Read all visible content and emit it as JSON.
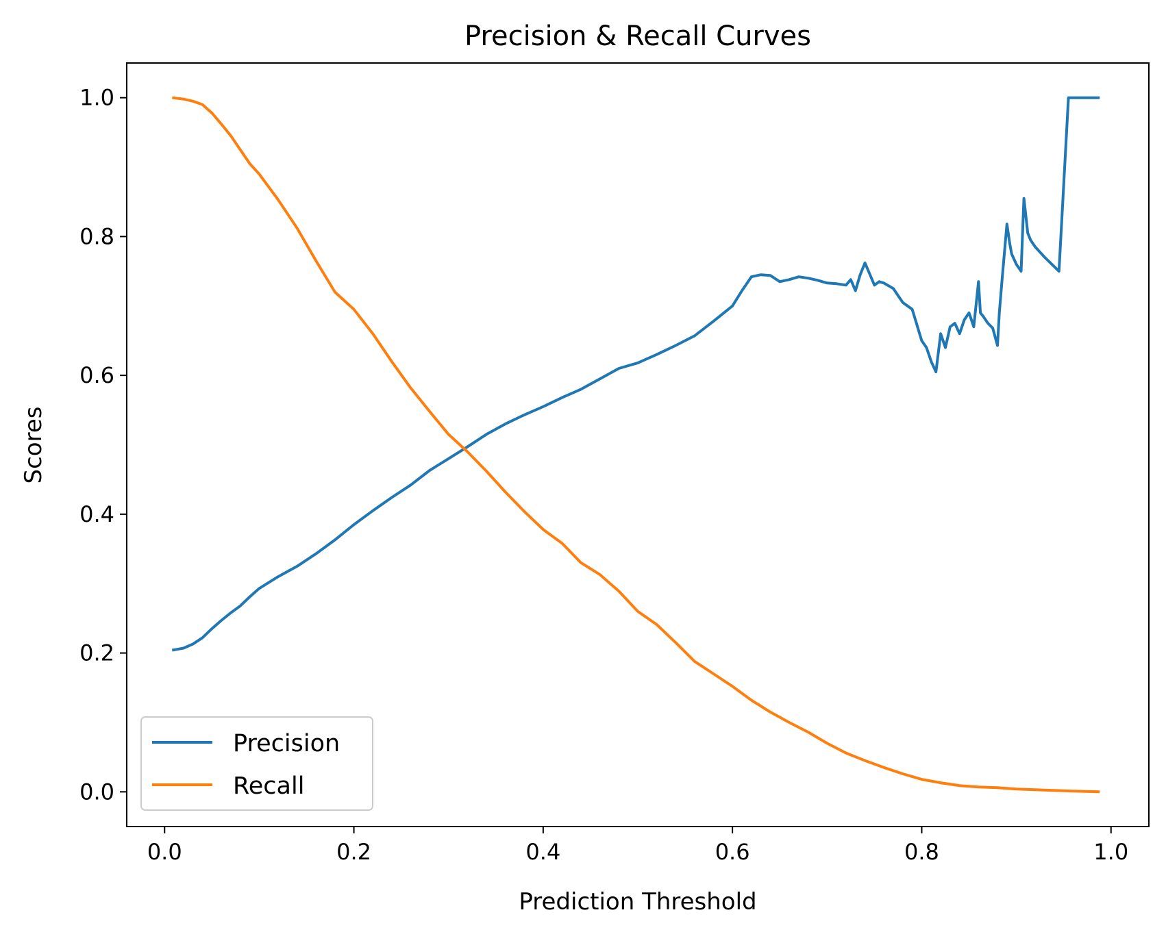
{
  "chart_data": {
    "type": "line",
    "title": "Precision & Recall Curves",
    "xlabel": "Prediction Threshold",
    "ylabel": "Scores",
    "xlim": [
      -0.04,
      1.04
    ],
    "ylim": [
      -0.05,
      1.05
    ],
    "xticks": [
      "0.0",
      "0.2",
      "0.4",
      "0.6",
      "0.8",
      "1.0"
    ],
    "yticks": [
      "0.0",
      "0.2",
      "0.4",
      "0.6",
      "0.8",
      "1.0"
    ],
    "grid": false,
    "legend_position": "lower-left",
    "series": [
      {
        "name": "Precision",
        "color": "#1f77b4",
        "x": [
          0.008,
          0.02,
          0.03,
          0.04,
          0.05,
          0.06,
          0.07,
          0.08,
          0.09,
          0.1,
          0.12,
          0.14,
          0.16,
          0.18,
          0.2,
          0.22,
          0.24,
          0.26,
          0.28,
          0.3,
          0.32,
          0.34,
          0.36,
          0.38,
          0.4,
          0.42,
          0.44,
          0.46,
          0.48,
          0.5,
          0.52,
          0.54,
          0.56,
          0.58,
          0.6,
          0.61,
          0.62,
          0.63,
          0.64,
          0.65,
          0.66,
          0.67,
          0.68,
          0.69,
          0.7,
          0.71,
          0.72,
          0.725,
          0.73,
          0.735,
          0.74,
          0.75,
          0.755,
          0.76,
          0.77,
          0.775,
          0.78,
          0.79,
          0.8,
          0.805,
          0.81,
          0.815,
          0.82,
          0.825,
          0.83,
          0.835,
          0.84,
          0.845,
          0.85,
          0.855,
          0.86,
          0.862,
          0.865,
          0.87,
          0.875,
          0.88,
          0.882,
          0.885,
          0.89,
          0.893,
          0.895,
          0.9,
          0.905,
          0.908,
          0.91,
          0.912,
          0.915,
          0.92,
          0.93,
          0.945,
          0.955,
          0.965,
          0.975,
          0.988
        ],
        "y": [
          0.204,
          0.207,
          0.213,
          0.222,
          0.235,
          0.247,
          0.258,
          0.268,
          0.281,
          0.293,
          0.31,
          0.325,
          0.343,
          0.363,
          0.385,
          0.405,
          0.424,
          0.442,
          0.463,
          0.48,
          0.497,
          0.515,
          0.53,
          0.543,
          0.555,
          0.568,
          0.58,
          0.595,
          0.61,
          0.618,
          0.63,
          0.643,
          0.657,
          0.678,
          0.7,
          0.722,
          0.742,
          0.745,
          0.744,
          0.735,
          0.738,
          0.742,
          0.74,
          0.737,
          0.733,
          0.732,
          0.73,
          0.738,
          0.722,
          0.745,
          0.762,
          0.73,
          0.735,
          0.733,
          0.725,
          0.715,
          0.705,
          0.695,
          0.65,
          0.64,
          0.62,
          0.605,
          0.66,
          0.64,
          0.67,
          0.675,
          0.66,
          0.68,
          0.69,
          0.67,
          0.735,
          0.69,
          0.685,
          0.675,
          0.668,
          0.643,
          0.69,
          0.74,
          0.818,
          0.79,
          0.775,
          0.76,
          0.75,
          0.855,
          0.83,
          0.805,
          0.795,
          0.785,
          0.77,
          0.75,
          1.0,
          1.0,
          1.0,
          1.0
        ]
      },
      {
        "name": "Recall",
        "color": "#ff7f0e",
        "x": [
          0.008,
          0.02,
          0.03,
          0.04,
          0.05,
          0.06,
          0.07,
          0.08,
          0.09,
          0.1,
          0.12,
          0.14,
          0.16,
          0.18,
          0.2,
          0.22,
          0.24,
          0.26,
          0.28,
          0.3,
          0.32,
          0.34,
          0.36,
          0.38,
          0.4,
          0.42,
          0.44,
          0.46,
          0.48,
          0.5,
          0.52,
          0.54,
          0.56,
          0.58,
          0.6,
          0.62,
          0.64,
          0.66,
          0.68,
          0.7,
          0.72,
          0.74,
          0.76,
          0.78,
          0.8,
          0.82,
          0.84,
          0.86,
          0.88,
          0.9,
          0.92,
          0.94,
          0.96,
          0.988
        ],
        "y": [
          1.0,
          0.998,
          0.995,
          0.99,
          0.978,
          0.962,
          0.945,
          0.925,
          0.905,
          0.89,
          0.853,
          0.812,
          0.765,
          0.72,
          0.695,
          0.66,
          0.62,
          0.582,
          0.548,
          0.515,
          0.49,
          0.462,
          0.432,
          0.404,
          0.378,
          0.358,
          0.33,
          0.313,
          0.289,
          0.26,
          0.241,
          0.215,
          0.188,
          0.17,
          0.152,
          0.132,
          0.115,
          0.1,
          0.086,
          0.07,
          0.056,
          0.045,
          0.035,
          0.026,
          0.018,
          0.013,
          0.009,
          0.007,
          0.006,
          0.004,
          0.003,
          0.002,
          0.001,
          0.0
        ]
      }
    ]
  }
}
